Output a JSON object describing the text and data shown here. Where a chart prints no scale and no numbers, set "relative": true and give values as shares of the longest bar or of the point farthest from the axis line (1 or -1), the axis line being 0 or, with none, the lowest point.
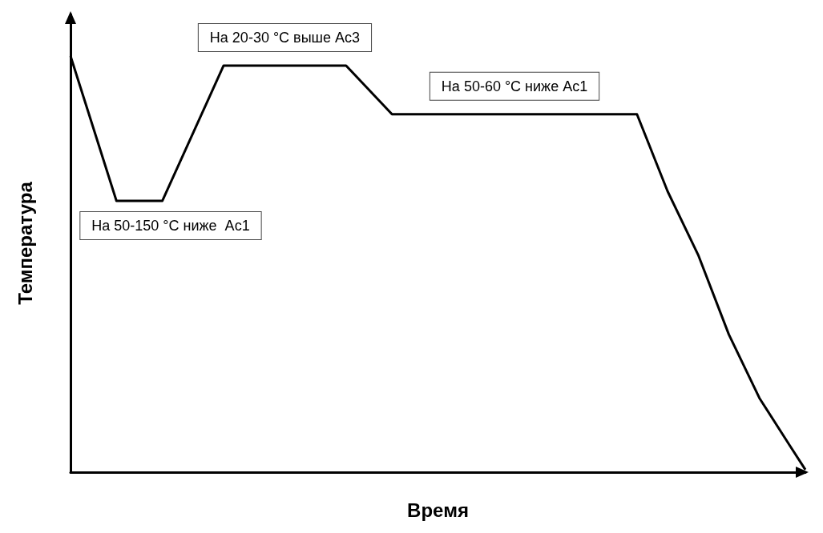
{
  "chart_data": {
    "type": "line",
    "relative": true,
    "xlabel": "Время",
    "ylabel": "Температура",
    "categories": [
      null,
      null,
      null,
      null,
      null,
      null,
      null,
      null,
      null,
      null,
      null,
      null,
      null,
      null,
      null,
      null,
      null,
      null,
      null,
      null,
      null,
      null,
      null,
      null,
      null,
      null,
      null,
      null,
      null,
      null,
      null,
      null,
      null,
      null,
      null,
      null,
      null,
      null,
      null,
      null,
      null,
      null,
      null,
      null,
      null,
      null,
      null,
      null,
      null
    ],
    "series": [
      {
        "color": "#000000",
        "values": [
          1,
          null,
          null,
          0.652,
          null,
          null,
          0.652,
          null,
          null,
          null,
          0.977,
          null,
          null,
          null,
          null,
          null,
          null,
          null,
          0.977,
          null,
          null,
          0.86,
          null,
          null,
          null,
          null,
          null,
          null,
          null,
          null,
          null,
          null,
          null,
          null,
          null,
          null,
          null,
          0.86,
          null,
          0.675,
          null,
          0.522,
          null,
          0.331,
          null,
          0.178,
          null,
          0.063,
          0.006
        ]
      }
    ],
    "annotations": [
      "На 50-150 °C ниже  Ac1",
      "На 20-30 °C выше Ac3",
      "На 50-60 °C ниже Ac1"
    ],
    "grid": false,
    "marker": "none",
    "line_style": "solid"
  }
}
